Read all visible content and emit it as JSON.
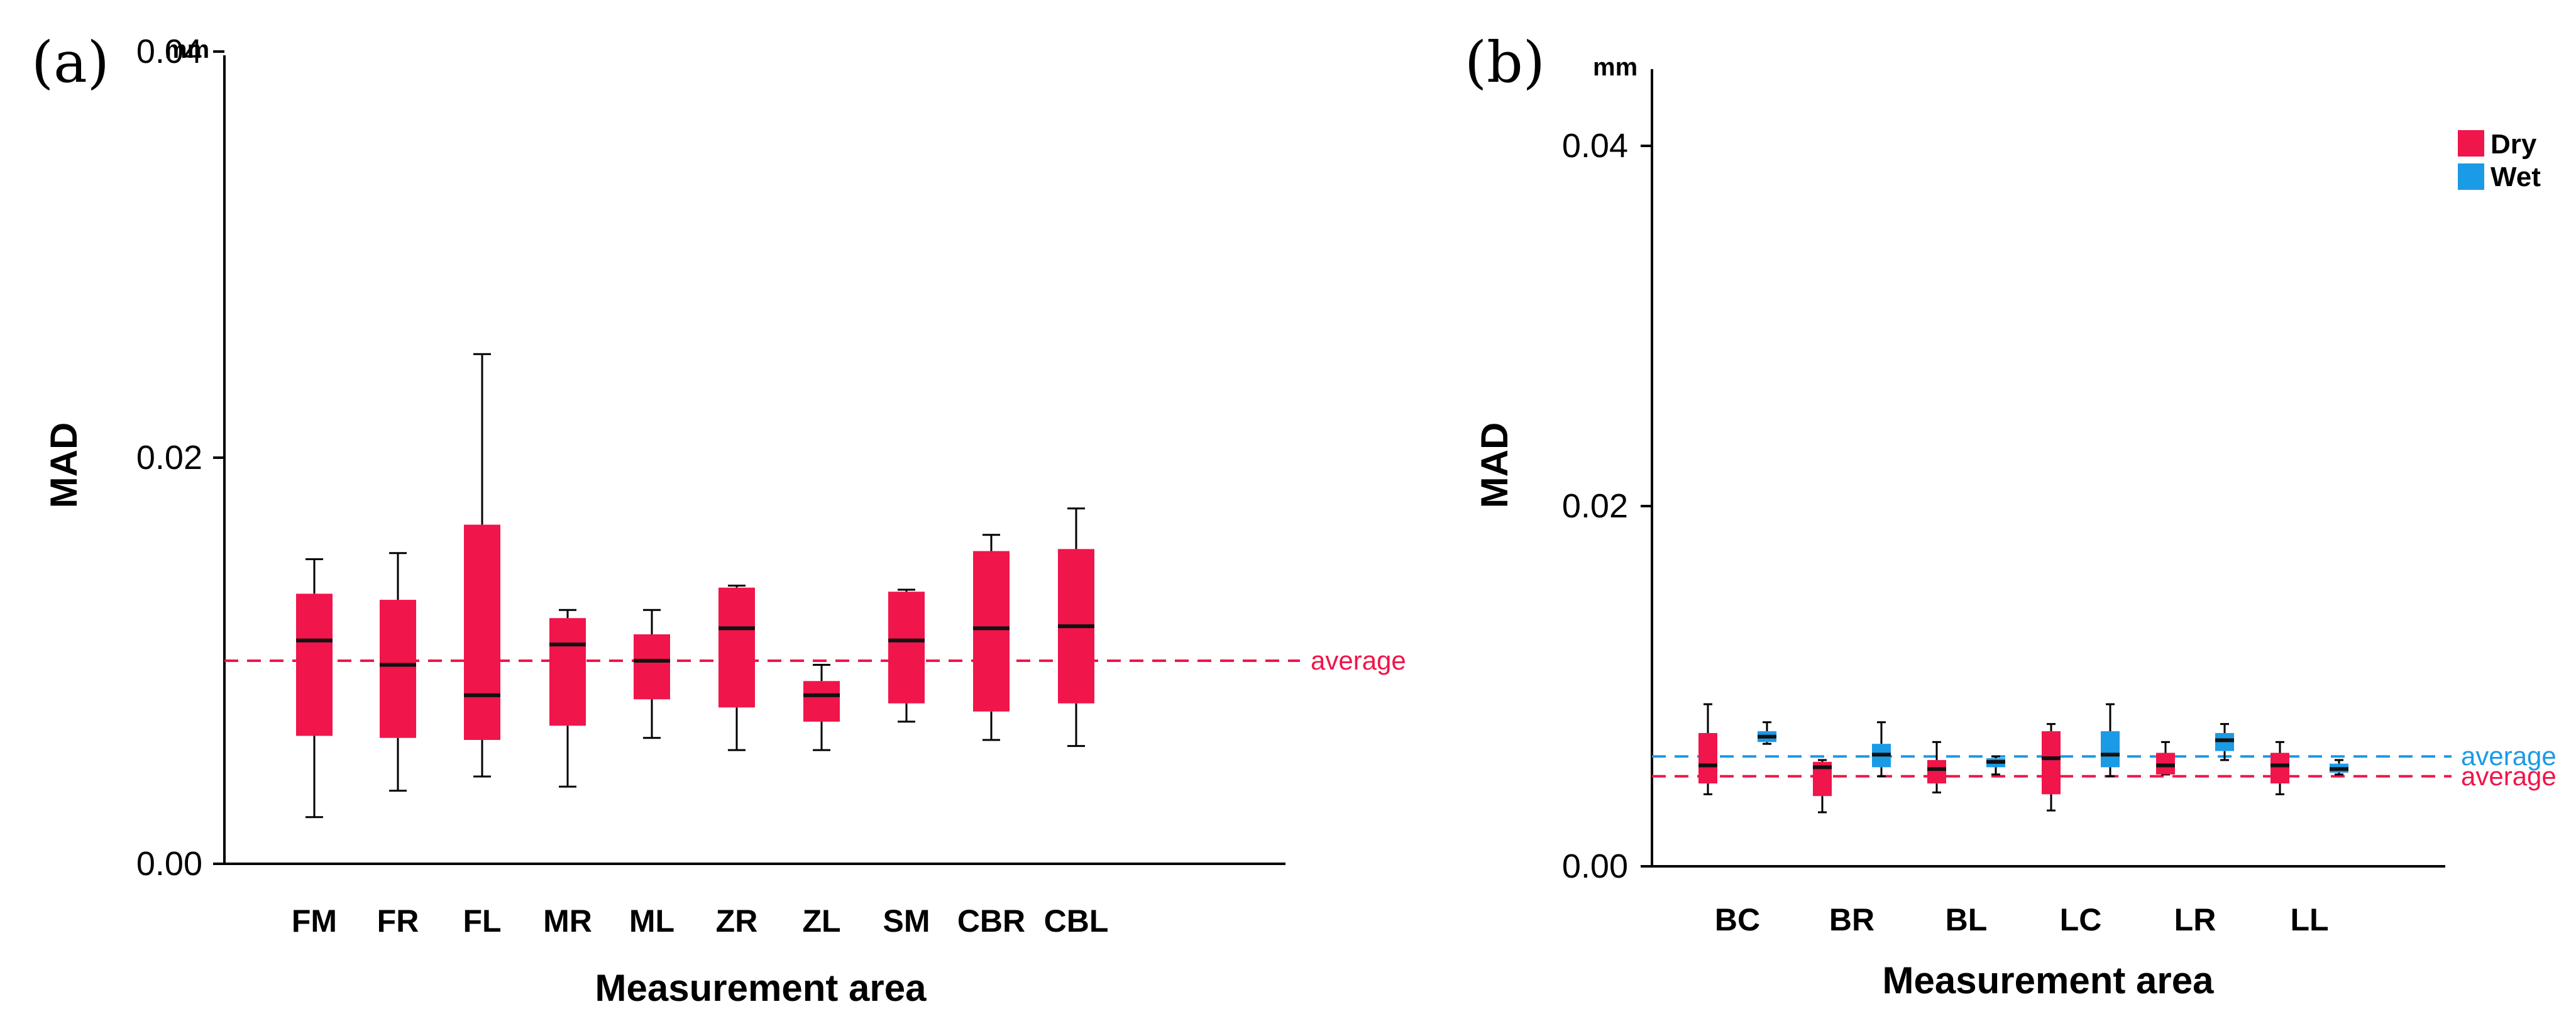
{
  "colors": {
    "dry": "#f0154a",
    "wet": "#1b9ae6",
    "axis": "#000000"
  },
  "chart_data": [
    {
      "type": "box",
      "panel_label": "(a)",
      "unit": "mm",
      "ylabel": "MAD",
      "xlabel": "Measurement area",
      "ylim": [
        0,
        0.04
      ],
      "yticks": [
        "0.00",
        "0.02",
        "0.04"
      ],
      "ytick_values": [
        0,
        0.02,
        0.04
      ],
      "categories": [
        "FM",
        "FR",
        "FL",
        "MR",
        "ML",
        "ZR",
        "ZL",
        "SM",
        "CBR",
        "CBL"
      ],
      "series": [
        {
          "name": "",
          "color_key": "dry",
          "boxes": [
            {
              "min": 0.0023,
              "q1": 0.0063,
              "median": 0.011,
              "q3": 0.0133,
              "max": 0.015
            },
            {
              "min": 0.0036,
              "q1": 0.0062,
              "median": 0.0098,
              "q3": 0.013,
              "max": 0.0153
            },
            {
              "min": 0.0043,
              "q1": 0.0061,
              "median": 0.0083,
              "q3": 0.0167,
              "max": 0.0251
            },
            {
              "min": 0.0038,
              "q1": 0.0068,
              "median": 0.0108,
              "q3": 0.0121,
              "max": 0.0125
            },
            {
              "min": 0.0062,
              "q1": 0.0081,
              "median": 0.01,
              "q3": 0.0113,
              "max": 0.0125
            },
            {
              "min": 0.0056,
              "q1": 0.0077,
              "median": 0.0116,
              "q3": 0.0136,
              "max": 0.0137
            },
            {
              "min": 0.0056,
              "q1": 0.007,
              "median": 0.0083,
              "q3": 0.009,
              "max": 0.0098
            },
            {
              "min": 0.007,
              "q1": 0.0079,
              "median": 0.011,
              "q3": 0.0134,
              "max": 0.0135
            },
            {
              "min": 0.0061,
              "q1": 0.0075,
              "median": 0.0116,
              "q3": 0.0154,
              "max": 0.0162
            },
            {
              "min": 0.0058,
              "q1": 0.0079,
              "median": 0.0117,
              "q3": 0.0155,
              "max": 0.0175
            }
          ]
        }
      ],
      "averages": [
        {
          "label": "average",
          "value": 0.01,
          "color_key": "dry"
        }
      ],
      "legend": []
    },
    {
      "type": "box",
      "panel_label": "(b)",
      "unit": "mm",
      "ylabel": "MAD",
      "xlabel": "Measurement area",
      "ylim": [
        0,
        0.04
      ],
      "yticks": [
        "0.00",
        "0.02",
        "0.04"
      ],
      "ytick_values": [
        0,
        0.02,
        0.04
      ],
      "categories": [
        "BC",
        "BR",
        "BL",
        "LC",
        "LR",
        "LL"
      ],
      "series": [
        {
          "name": "Dry",
          "color_key": "dry",
          "boxes": [
            {
              "min": 0.004,
              "q1": 0.0046,
              "median": 0.0056,
              "q3": 0.0074,
              "max": 0.009
            },
            {
              "min": 0.003,
              "q1": 0.0039,
              "median": 0.0055,
              "q3": 0.0058,
              "max": 0.0059
            },
            {
              "min": 0.0041,
              "q1": 0.0046,
              "median": 0.0054,
              "q3": 0.0059,
              "max": 0.0069
            },
            {
              "min": 0.0031,
              "q1": 0.004,
              "median": 0.006,
              "q3": 0.0075,
              "max": 0.0079
            },
            {
              "min": 0.0051,
              "q1": 0.0051,
              "median": 0.0056,
              "q3": 0.0063,
              "max": 0.0069
            },
            {
              "min": 0.004,
              "q1": 0.0046,
              "median": 0.0056,
              "q3": 0.0063,
              "max": 0.0069
            }
          ]
        },
        {
          "name": "Wet",
          "color_key": "wet",
          "boxes": [
            {
              "min": 0.0068,
              "q1": 0.0069,
              "median": 0.0072,
              "q3": 0.0075,
              "max": 0.008
            },
            {
              "min": 0.005,
              "q1": 0.0055,
              "median": 0.0062,
              "q3": 0.0068,
              "max": 0.008
            },
            {
              "min": 0.0051,
              "q1": 0.0055,
              "median": 0.0058,
              "q3": 0.006,
              "max": 0.0061
            },
            {
              "min": 0.005,
              "q1": 0.0055,
              "median": 0.0062,
              "q3": 0.0075,
              "max": 0.009
            },
            {
              "min": 0.0059,
              "q1": 0.0064,
              "median": 0.007,
              "q3": 0.0074,
              "max": 0.0079
            },
            {
              "min": 0.0051,
              "q1": 0.0052,
              "median": 0.0054,
              "q3": 0.0057,
              "max": 0.0059
            }
          ]
        }
      ],
      "averages": [
        {
          "label": "average",
          "value": 0.0061,
          "color_key": "wet"
        },
        {
          "label": "average",
          "value": 0.005,
          "color_key": "dry"
        }
      ],
      "legend": [
        {
          "label": "Dry",
          "color_key": "dry"
        },
        {
          "label": "Wet",
          "color_key": "wet"
        }
      ]
    }
  ]
}
